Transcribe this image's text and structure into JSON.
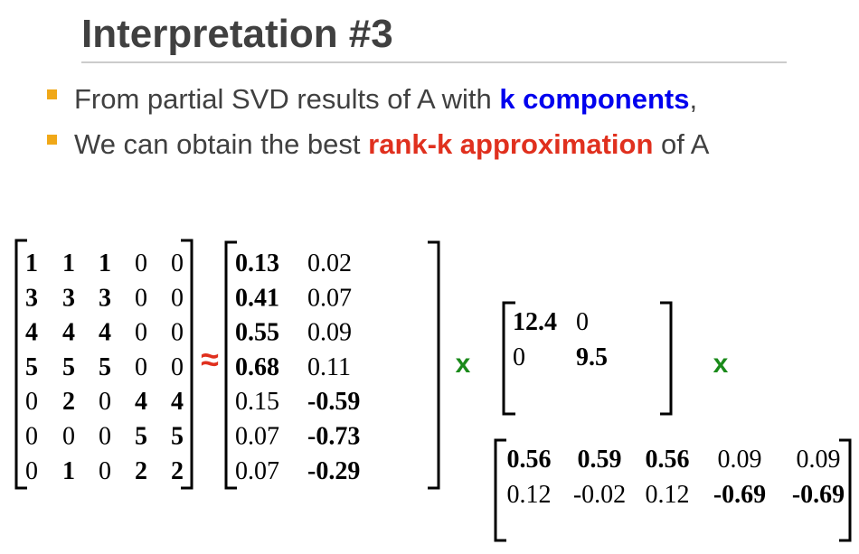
{
  "header": {
    "title": "Interpretation #3"
  },
  "bullets": [
    {
      "segments": [
        {
          "text": "From partial SVD results of A with "
        },
        {
          "text": "k components",
          "color": "#0000ee",
          "bold": true
        },
        {
          "text": ","
        }
      ]
    },
    {
      "segments": [
        {
          "text": "We can obtain the best "
        },
        {
          "text": "rank-k approximation",
          "color": "#e0301e",
          "bold": true
        },
        {
          "text": " of A"
        }
      ]
    }
  ],
  "operators": {
    "approx": "≈",
    "times1": "x",
    "times2": "x"
  },
  "matrices": {
    "A": [
      [
        {
          "v": 1,
          "b": true
        },
        {
          "v": 1,
          "b": true
        },
        {
          "v": 1,
          "b": true
        },
        {
          "v": 0
        },
        {
          "v": 0
        }
      ],
      [
        {
          "v": 3,
          "b": true
        },
        {
          "v": 3,
          "b": true
        },
        {
          "v": 3,
          "b": true
        },
        {
          "v": 0
        },
        {
          "v": 0
        }
      ],
      [
        {
          "v": 4,
          "b": true
        },
        {
          "v": 4,
          "b": true
        },
        {
          "v": 4,
          "b": true
        },
        {
          "v": 0
        },
        {
          "v": 0
        }
      ],
      [
        {
          "v": 5,
          "b": true
        },
        {
          "v": 5,
          "b": true
        },
        {
          "v": 5,
          "b": true
        },
        {
          "v": 0
        },
        {
          "v": 0
        }
      ],
      [
        {
          "v": 0
        },
        {
          "v": 2,
          "b": true
        },
        {
          "v": 0
        },
        {
          "v": 4,
          "b": true
        },
        {
          "v": 4,
          "b": true
        }
      ],
      [
        {
          "v": 0
        },
        {
          "v": 0
        },
        {
          "v": 0
        },
        {
          "v": 5,
          "b": true
        },
        {
          "v": 5,
          "b": true
        }
      ],
      [
        {
          "v": 0
        },
        {
          "v": 1,
          "b": true
        },
        {
          "v": 0
        },
        {
          "v": 2,
          "b": true
        },
        {
          "v": 2,
          "b": true
        }
      ]
    ],
    "U": [
      [
        {
          "v": 0.13,
          "b": true
        },
        {
          "v": 0.02
        }
      ],
      [
        {
          "v": 0.41,
          "b": true
        },
        {
          "v": 0.07
        }
      ],
      [
        {
          "v": 0.55,
          "b": true
        },
        {
          "v": 0.09
        }
      ],
      [
        {
          "v": 0.68,
          "b": true
        },
        {
          "v": 0.11
        }
      ],
      [
        {
          "v": 0.15
        },
        {
          "v": -0.59,
          "b": true
        }
      ],
      [
        {
          "v": 0.07
        },
        {
          "v": -0.73,
          "b": true
        }
      ],
      [
        {
          "v": 0.07
        },
        {
          "v": -0.29,
          "b": true
        }
      ]
    ],
    "S": [
      [
        {
          "v": 12.4,
          "b": true
        },
        {
          "v": 0
        }
      ],
      [
        {
          "v": 0
        },
        {
          "v": 9.5,
          "b": true
        }
      ]
    ],
    "V": [
      [
        {
          "v": 0.56,
          "b": true
        },
        {
          "v": 0.59,
          "b": true
        },
        {
          "v": 0.56,
          "b": true
        },
        {
          "v": 0.09
        },
        {
          "v": 0.09
        }
      ],
      [
        {
          "v": 0.12
        },
        {
          "v": -0.02
        },
        {
          "v": 0.12
        },
        {
          "v": -0.69,
          "b": true
        },
        {
          "v": -0.69,
          "b": true
        }
      ]
    ]
  }
}
